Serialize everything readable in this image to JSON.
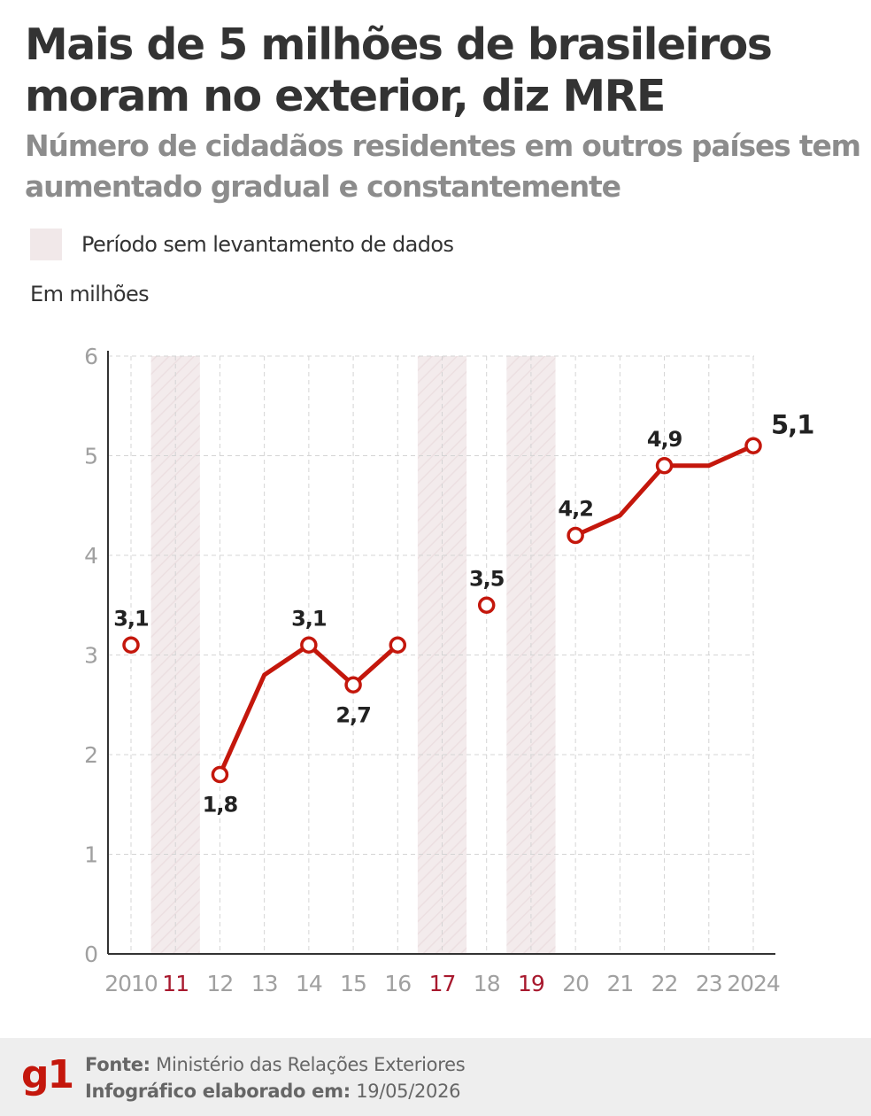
{
  "header": {
    "title": "Mais de 5 milhões de brasileiros moram no exterior, diz MRE",
    "subtitle": "Número de cidadãos residentes em outros países tem aumentado gradual e constantemente"
  },
  "legend": {
    "label": "Período sem levantamento de dados"
  },
  "unit_label": "Em milhões",
  "footer": {
    "logo": "g1",
    "source_label": "Fonte:",
    "source_value": "Ministério das Relações Exteriores",
    "made_label": "Infográfico elaborado em:",
    "made_value": "19/05/2026"
  },
  "colors": {
    "line": "#c4170c",
    "no_data_band": "#f1e8e9",
    "no_data_tick": "#a8192e",
    "axis_tick": "#a0a0a0",
    "text_dark": "#222222"
  },
  "chart_data": {
    "type": "line",
    "title": "Mais de 5 milhões de brasileiros moram no exterior, diz MRE",
    "ylabel": "Em milhões",
    "ylim": [
      0,
      6
    ],
    "yticks": [
      "0",
      "1",
      "2",
      "3",
      "4",
      "5",
      "6"
    ],
    "grid": true,
    "x": [
      "2010",
      "11",
      "12",
      "13",
      "14",
      "15",
      "16",
      "17",
      "18",
      "19",
      "20",
      "21",
      "22",
      "23",
      "2024"
    ],
    "no_data_years": [
      "11",
      "17",
      "19"
    ],
    "segments": [
      {
        "x": [
          "2010"
        ],
        "values": [
          3.1
        ]
      },
      {
        "x": [
          "12",
          "13",
          "14",
          "15",
          "16"
        ],
        "values": [
          1.8,
          2.8,
          3.1,
          2.7,
          3.1
        ]
      },
      {
        "x": [
          "18"
        ],
        "values": [
          3.5
        ]
      },
      {
        "x": [
          "20",
          "21",
          "22",
          "23",
          "2024"
        ],
        "values": [
          4.2,
          4.4,
          4.9,
          4.9,
          5.1
        ]
      }
    ],
    "marked_points": [
      {
        "x": "2010",
        "value": 3.1,
        "label": "3,1"
      },
      {
        "x": "12",
        "value": 1.8,
        "label": "1,8"
      },
      {
        "x": "14",
        "value": 3.1,
        "label": "3,1"
      },
      {
        "x": "15",
        "value": 2.7,
        "label": "2,7"
      },
      {
        "x": "16",
        "value": 3.1,
        "label": ""
      },
      {
        "x": "18",
        "value": 3.5,
        "label": "3,5"
      },
      {
        "x": "20",
        "value": 4.2,
        "label": "4,2"
      },
      {
        "x": "22",
        "value": 4.9,
        "label": "4,9"
      },
      {
        "x": "2024",
        "value": 5.1,
        "label": "5,1"
      }
    ]
  }
}
